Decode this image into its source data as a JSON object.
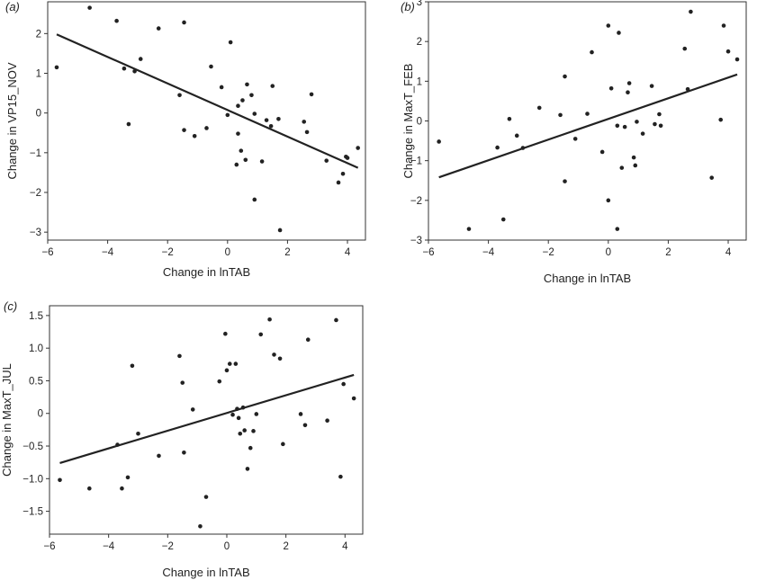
{
  "chart_data": [
    {
      "type": "scatter",
      "panel": "(a)",
      "xlabel": "Change in lnTAB",
      "ylabel": "Change in VP15_NOV",
      "xlim": [
        -6,
        4.6
      ],
      "ylim": [
        -3.2,
        2.8
      ],
      "xticks": [
        -6,
        -4,
        -2,
        0,
        2,
        4
      ],
      "yticks": [
        -3,
        -2,
        -1,
        0,
        1,
        2
      ],
      "xtick_labels": [
        "−6",
        "−4",
        "−2",
        "0",
        "2",
        "4"
      ],
      "ytick_labels": [
        "−3",
        "−2",
        "−1",
        "0",
        "1",
        "2"
      ],
      "grid": false,
      "points": [
        {
          "x": -5.7,
          "y": 1.15
        },
        {
          "x": -4.6,
          "y": 2.65
        },
        {
          "x": -3.7,
          "y": 2.32
        },
        {
          "x": -3.45,
          "y": 1.12
        },
        {
          "x": -3.3,
          "y": -0.28
        },
        {
          "x": -3.1,
          "y": 1.05
        },
        {
          "x": -2.9,
          "y": 1.36
        },
        {
          "x": -2.3,
          "y": 2.13
        },
        {
          "x": -1.6,
          "y": 0.45
        },
        {
          "x": -1.45,
          "y": 2.28
        },
        {
          "x": -1.45,
          "y": -0.43
        },
        {
          "x": -1.1,
          "y": -0.58
        },
        {
          "x": -0.7,
          "y": -0.38
        },
        {
          "x": -0.55,
          "y": 1.17
        },
        {
          "x": -0.2,
          "y": 0.65
        },
        {
          "x": 0.0,
          "y": -0.05
        },
        {
          "x": 0.1,
          "y": 1.78
        },
        {
          "x": 0.3,
          "y": -1.3
        },
        {
          "x": 0.35,
          "y": 0.18
        },
        {
          "x": 0.35,
          "y": -0.52
        },
        {
          "x": 0.45,
          "y": -0.95
        },
        {
          "x": 0.5,
          "y": 0.32
        },
        {
          "x": 0.6,
          "y": -1.18
        },
        {
          "x": 0.65,
          "y": 0.72
        },
        {
          "x": 0.8,
          "y": 0.45
        },
        {
          "x": 0.9,
          "y": -0.02
        },
        {
          "x": 0.9,
          "y": -2.18
        },
        {
          "x": 1.15,
          "y": -1.22
        },
        {
          "x": 1.3,
          "y": -0.18
        },
        {
          "x": 1.45,
          "y": -0.33
        },
        {
          "x": 1.5,
          "y": 0.68
        },
        {
          "x": 1.7,
          "y": -0.15
        },
        {
          "x": 1.75,
          "y": -2.95
        },
        {
          "x": 2.55,
          "y": -0.22
        },
        {
          "x": 2.65,
          "y": -0.48
        },
        {
          "x": 2.8,
          "y": 0.47
        },
        {
          "x": 3.3,
          "y": -1.2
        },
        {
          "x": 3.7,
          "y": -1.75
        },
        {
          "x": 3.85,
          "y": -1.53
        },
        {
          "x": 3.95,
          "y": -1.1
        },
        {
          "x": 4.0,
          "y": -1.13
        },
        {
          "x": 4.35,
          "y": -0.88
        }
      ],
      "fit_line": {
        "x": [
          -5.7,
          4.35
        ],
        "y": [
          1.98,
          -1.38
        ]
      }
    },
    {
      "type": "scatter",
      "panel": "(b)",
      "xlabel": "Change in lnTAB",
      "ylabel": "Change in MaxT_FEB",
      "xlim": [
        -6,
        4.6
      ],
      "ylim": [
        -3,
        3
      ],
      "xticks": [
        -6,
        -4,
        -2,
        0,
        2,
        4
      ],
      "yticks": [
        -3,
        -2,
        -1,
        0,
        1,
        2,
        3
      ],
      "xtick_labels": [
        "−6",
        "−4",
        "−2",
        "0",
        "2",
        "4"
      ],
      "ytick_labels": [
        "−3",
        "−2",
        "−1",
        "0",
        "1",
        "2",
        "3"
      ],
      "grid": false,
      "points": [
        {
          "x": -5.65,
          "y": -0.52
        },
        {
          "x": -4.65,
          "y": -2.72
        },
        {
          "x": -3.7,
          "y": -0.67
        },
        {
          "x": -3.5,
          "y": -2.48
        },
        {
          "x": -3.3,
          "y": 0.05
        },
        {
          "x": -3.05,
          "y": -0.37
        },
        {
          "x": -2.85,
          "y": -0.68
        },
        {
          "x": -2.3,
          "y": 0.33
        },
        {
          "x": -1.6,
          "y": 0.15
        },
        {
          "x": -1.45,
          "y": 1.12
        },
        {
          "x": -1.45,
          "y": -1.52
        },
        {
          "x": -1.1,
          "y": -0.45
        },
        {
          "x": -0.7,
          "y": 0.18
        },
        {
          "x": -0.55,
          "y": 1.73
        },
        {
          "x": -0.2,
          "y": -0.78
        },
        {
          "x": 0.0,
          "y": 2.4
        },
        {
          "x": 0.0,
          "y": -2.0
        },
        {
          "x": 0.1,
          "y": 0.82
        },
        {
          "x": 0.3,
          "y": -0.12
        },
        {
          "x": 0.3,
          "y": -2.72
        },
        {
          "x": 0.35,
          "y": 2.22
        },
        {
          "x": 0.45,
          "y": -1.18
        },
        {
          "x": 0.55,
          "y": -0.15
        },
        {
          "x": 0.65,
          "y": 0.72
        },
        {
          "x": 0.7,
          "y": 0.95
        },
        {
          "x": 0.85,
          "y": -0.92
        },
        {
          "x": 0.9,
          "y": -1.12
        },
        {
          "x": 0.95,
          "y": -0.02
        },
        {
          "x": 1.15,
          "y": -0.32
        },
        {
          "x": 1.45,
          "y": 0.88
        },
        {
          "x": 1.55,
          "y": -0.08
        },
        {
          "x": 1.7,
          "y": 0.17
        },
        {
          "x": 1.75,
          "y": -0.12
        },
        {
          "x": 2.55,
          "y": 1.82
        },
        {
          "x": 2.65,
          "y": 0.8
        },
        {
          "x": 2.75,
          "y": 2.75
        },
        {
          "x": 3.45,
          "y": -1.43
        },
        {
          "x": 3.75,
          "y": 0.03
        },
        {
          "x": 3.85,
          "y": 2.4
        },
        {
          "x": 4.0,
          "y": 1.75
        },
        {
          "x": 4.3,
          "y": 1.55
        }
      ],
      "fit_line": {
        "x": [
          -5.65,
          4.3
        ],
        "y": [
          -1.42,
          1.17
        ]
      }
    },
    {
      "type": "scatter",
      "panel": "(c)",
      "xlabel": "Change in lnTAB",
      "ylabel": "Change in MaxT_JUL",
      "xlim": [
        -6,
        4.6
      ],
      "ylim": [
        -1.85,
        1.65
      ],
      "xticks": [
        -6,
        -4,
        -2,
        0,
        2,
        4
      ],
      "yticks": [
        -1.5,
        -1.0,
        -0.5,
        0,
        0.5,
        1.0,
        1.5
      ],
      "xtick_labels": [
        "−6",
        "−4",
        "−2",
        "0",
        "2",
        "4"
      ],
      "ytick_labels": [
        "−1.5",
        "−1.0",
        "−0.5",
        "0",
        "0.5",
        "1.0",
        "1.5"
      ],
      "grid": false,
      "points": [
        {
          "x": -5.65,
          "y": -1.02
        },
        {
          "x": -4.65,
          "y": -1.15
        },
        {
          "x": -3.7,
          "y": -0.48
        },
        {
          "x": -3.55,
          "y": -1.15
        },
        {
          "x": -3.35,
          "y": -0.98
        },
        {
          "x": -3.2,
          "y": 0.73
        },
        {
          "x": -3.0,
          "y": -0.31
        },
        {
          "x": -2.3,
          "y": -0.65
        },
        {
          "x": -1.6,
          "y": 0.88
        },
        {
          "x": -1.5,
          "y": 0.47
        },
        {
          "x": -1.45,
          "y": -0.6
        },
        {
          "x": -1.15,
          "y": 0.06
        },
        {
          "x": -0.9,
          "y": -1.73
        },
        {
          "x": -0.7,
          "y": -1.28
        },
        {
          "x": -0.25,
          "y": 0.49
        },
        {
          "x": -0.05,
          "y": 1.22
        },
        {
          "x": 0.0,
          "y": 0.66
        },
        {
          "x": 0.1,
          "y": 0.76
        },
        {
          "x": 0.2,
          "y": -0.02
        },
        {
          "x": 0.3,
          "y": 0.76
        },
        {
          "x": 0.35,
          "y": 0.07
        },
        {
          "x": 0.4,
          "y": -0.07
        },
        {
          "x": 0.45,
          "y": -0.31
        },
        {
          "x": 0.55,
          "y": 0.09
        },
        {
          "x": 0.6,
          "y": -0.26
        },
        {
          "x": 0.7,
          "y": -0.85
        },
        {
          "x": 0.8,
          "y": -0.53
        },
        {
          "x": 0.9,
          "y": -0.27
        },
        {
          "x": 1.0,
          "y": -0.01
        },
        {
          "x": 1.15,
          "y": 1.21
        },
        {
          "x": 1.45,
          "y": 1.44
        },
        {
          "x": 1.6,
          "y": 0.9
        },
        {
          "x": 1.8,
          "y": 0.84
        },
        {
          "x": 1.9,
          "y": -0.47
        },
        {
          "x": 2.5,
          "y": -0.01
        },
        {
          "x": 2.65,
          "y": -0.18
        },
        {
          "x": 2.75,
          "y": 1.13
        },
        {
          "x": 3.4,
          "y": -0.11
        },
        {
          "x": 3.7,
          "y": 1.43
        },
        {
          "x": 3.85,
          "y": -0.97
        },
        {
          "x": 3.95,
          "y": 0.45
        },
        {
          "x": 4.3,
          "y": 0.23
        }
      ],
      "fit_line": {
        "x": [
          -5.65,
          4.3
        ],
        "y": [
          -0.76,
          0.59
        ]
      }
    }
  ]
}
